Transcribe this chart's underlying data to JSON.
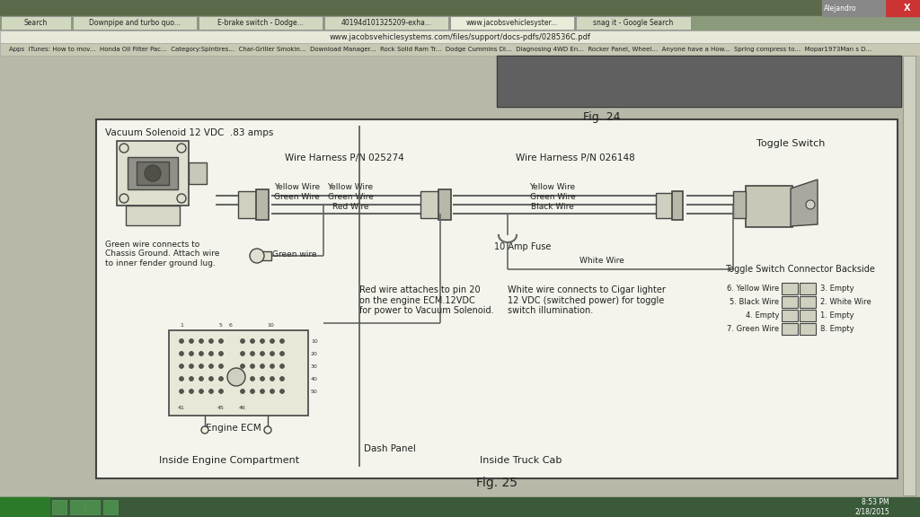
{
  "bg_color": "#b8b8a8",
  "tab_bar_color": "#8a9a7a",
  "title_vacuum": "Vacuum Solenoid 12 VDC  .83 amps",
  "harness1_label": "Wire Harness P/N 025274",
  "harness2_label": "Wire Harness P/N 026148",
  "toggle_label": "Toggle Switch",
  "connector_label": "Toggle Switch Connector Backside",
  "green_wire_note": "Green wire connects to\nChassis Ground. Attach wire\nto inner fender ground lug.",
  "green_wire_tag": "Green wire",
  "red_wire_note": "Red wire attaches to pin 20\non the engine ECM.12VDC\nfor power to Vacuum Solenoid.",
  "white_wire_label": "White Wire",
  "white_wire_note": "White wire connects to Cigar lighter\n12 VDC (switched power) for toggle\nswitch illumination.",
  "fuse_label": "10 Amp Fuse",
  "ecm_label": "Engine ECM",
  "dash_label": "Dash Panel",
  "inside_left": "Inside Engine Compartment",
  "inside_right": "Inside Truck Cab",
  "fig24": "Fig. 24",
  "fig25": "Fig. 25",
  "connector_pins_left": [
    "6. Yellow Wire",
    "5. Black Wire",
    "4. Empty",
    "7. Green Wire"
  ],
  "connector_pins_right": [
    "3. Empty",
    "2. White Wire",
    "1. Empty",
    "8. Empty"
  ],
  "url": "www.jacobsvehiclesystems.com/files/support/docs-pdfs/028536C.pdf",
  "tab_labels": [
    "Search",
    "Downpipe and turbo quo...",
    "E-brake switch - Dodge...",
    "40194d101325209-exha...",
    "www.jacobsvehiclesyster...",
    "snag it - Google Search"
  ],
  "time_str": "8:53 PM\n2/18/2015"
}
